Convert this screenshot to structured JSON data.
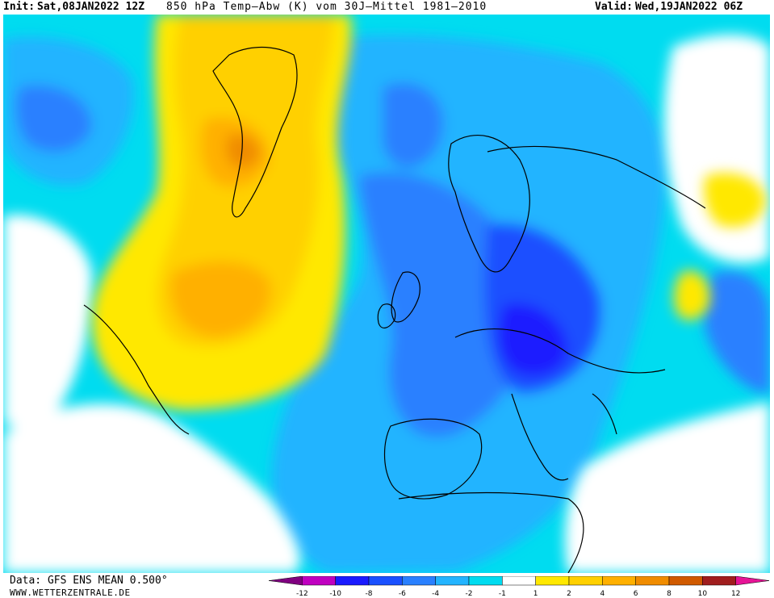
{
  "header": {
    "init_label": "Init:",
    "init_value": "Sat,08JAN2022 12Z",
    "title": "850 hPa Temp—Abw (K) vom 30J—Mittel 1981—2010",
    "valid_label": "Valid:",
    "valid_value": "Wed,19JAN2022 06Z"
  },
  "footer": {
    "source": "Data: GFS ENS MEAN 0.500°",
    "website": "WWW.WETTERZENTRALE.DE"
  },
  "legend": {
    "swatches": [
      {
        "color": "#800080",
        "label": "-12"
      },
      {
        "color": "#c000c0",
        "label": "-10"
      },
      {
        "color": "#1a1aff",
        "label": "-8"
      },
      {
        "color": "#1a50ff",
        "label": "-6"
      },
      {
        "color": "#2a80ff",
        "label": "-4"
      },
      {
        "color": "#23b4ff",
        "label": "-2"
      },
      {
        "color": "#00dcf0",
        "label": "-1"
      },
      {
        "color": "#ffffff",
        "label": "1"
      },
      {
        "color": "#ffe800",
        "label": "2"
      },
      {
        "color": "#ffd000",
        "label": "4"
      },
      {
        "color": "#ffb000",
        "label": "6"
      },
      {
        "color": "#f08c00",
        "label": "8"
      },
      {
        "color": "#d05a00",
        "label": "10"
      },
      {
        "color": "#a01e1e",
        "label": "12"
      },
      {
        "color": "#e61496",
        "label": ""
      }
    ]
  }
}
